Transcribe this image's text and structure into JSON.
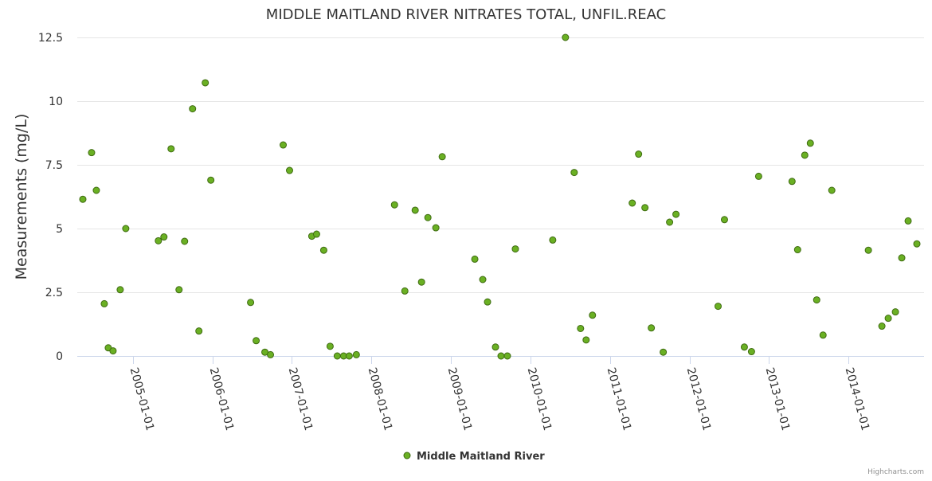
{
  "chart_data": {
    "type": "scatter",
    "title": "MIDDLE MAITLAND RIVER NITRATES TOTAL, UNFIL.REAC",
    "ylabel": "Measurements (mg/L)",
    "xlabel": "",
    "ylim": [
      0,
      12.5
    ],
    "yticks": [
      0,
      2.5,
      5,
      7.5,
      10,
      12.5
    ],
    "ytick_labels": [
      "0",
      "2.5",
      "5",
      "7.5",
      "10",
      "12.5"
    ],
    "xlim": [
      2004.3,
      2014.95
    ],
    "xticks": [
      2005,
      2006,
      2007,
      2008,
      2009,
      2010,
      2011,
      2012,
      2013,
      2014
    ],
    "xtick_labels": [
      "2005-01-01",
      "2006-01-01",
      "2007-01-01",
      "2008-01-01",
      "2009-01-01",
      "2010-01-01",
      "2011-01-01",
      "2012-01-01",
      "2013-01-01",
      "2014-01-01"
    ],
    "legend": "bottom-center",
    "grid": true,
    "series": [
      {
        "name": "Middle Maitland River",
        "color": "#6ab023",
        "border": "#3f6b12",
        "points": [
          [
            2004.37,
            6.15
          ],
          [
            2004.48,
            7.98
          ],
          [
            2004.54,
            6.5
          ],
          [
            2004.64,
            2.05
          ],
          [
            2004.69,
            0.32
          ],
          [
            2004.75,
            0.2
          ],
          [
            2004.84,
            2.6
          ],
          [
            2004.91,
            5.0
          ],
          [
            2005.32,
            4.52
          ],
          [
            2005.39,
            4.67
          ],
          [
            2005.48,
            8.13
          ],
          [
            2005.58,
            2.6
          ],
          [
            2005.65,
            4.5
          ],
          [
            2005.75,
            9.7
          ],
          [
            2005.83,
            0.98
          ],
          [
            2005.91,
            10.72
          ],
          [
            2005.98,
            6.9
          ],
          [
            2006.48,
            2.1
          ],
          [
            2006.55,
            0.6
          ],
          [
            2006.66,
            0.15
          ],
          [
            2006.73,
            0.05
          ],
          [
            2006.89,
            8.28
          ],
          [
            2006.97,
            7.28
          ],
          [
            2007.25,
            4.7
          ],
          [
            2007.31,
            4.78
          ],
          [
            2007.4,
            4.15
          ],
          [
            2007.48,
            0.38
          ],
          [
            2007.57,
            0.0
          ],
          [
            2007.65,
            0.0
          ],
          [
            2007.72,
            0.0
          ],
          [
            2007.81,
            0.05
          ],
          [
            2008.29,
            5.93
          ],
          [
            2008.42,
            2.55
          ],
          [
            2008.55,
            5.72
          ],
          [
            2008.63,
            2.9
          ],
          [
            2008.71,
            5.43
          ],
          [
            2008.81,
            5.03
          ],
          [
            2008.89,
            7.82
          ],
          [
            2009.3,
            3.8
          ],
          [
            2009.4,
            3.0
          ],
          [
            2009.46,
            2.12
          ],
          [
            2009.56,
            0.35
          ],
          [
            2009.63,
            0.0
          ],
          [
            2009.71,
            0.0
          ],
          [
            2009.81,
            4.2
          ],
          [
            2010.28,
            4.55
          ],
          [
            2010.44,
            12.5
          ],
          [
            2010.55,
            7.2
          ],
          [
            2010.63,
            1.08
          ],
          [
            2010.7,
            0.63
          ],
          [
            2010.78,
            1.6
          ],
          [
            2011.28,
            6.0
          ],
          [
            2011.36,
            7.92
          ],
          [
            2011.44,
            5.82
          ],
          [
            2011.52,
            1.1
          ],
          [
            2011.67,
            0.15
          ],
          [
            2011.75,
            5.25
          ],
          [
            2011.83,
            5.56
          ],
          [
            2012.36,
            1.95
          ],
          [
            2012.44,
            5.35
          ],
          [
            2012.69,
            0.35
          ],
          [
            2012.78,
            0.17
          ],
          [
            2012.87,
            7.05
          ],
          [
            2013.29,
            6.85
          ],
          [
            2013.36,
            4.17
          ],
          [
            2013.45,
            7.88
          ],
          [
            2013.52,
            8.35
          ],
          [
            2013.6,
            2.2
          ],
          [
            2013.68,
            0.82
          ],
          [
            2013.79,
            6.5
          ],
          [
            2014.25,
            4.15
          ],
          [
            2014.42,
            1.17
          ],
          [
            2014.5,
            1.48
          ],
          [
            2014.59,
            1.73
          ],
          [
            2014.67,
            3.85
          ],
          [
            2014.75,
            5.3
          ],
          [
            2014.86,
            4.4
          ]
        ]
      }
    ],
    "credits": "Highcharts.com"
  }
}
